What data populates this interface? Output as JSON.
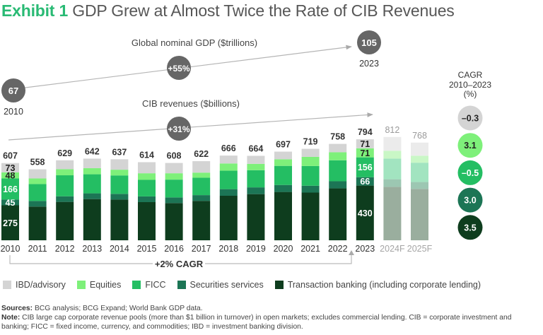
{
  "title": {
    "exhibit": "Exhibit 1",
    "text": "GDP Grew at Almost Twice the Rate of CIB Revenues"
  },
  "gdp": {
    "label": "Global nominal GDP ($trillions)",
    "start_value": "67",
    "start_year": "2010",
    "end_value": "105",
    "end_year": "2023",
    "growth": "+55%"
  },
  "cib": {
    "label": "CIB revenues ($billions)",
    "growth": "+31%"
  },
  "cagr_bracket": {
    "label": "+2% CAGR"
  },
  "cagr_panel": {
    "title_line1": "CAGR",
    "title_line2": "2010–2023",
    "title_line3": "(%)",
    "values": [
      {
        "segment": "IBD/advisory",
        "value": "–0.3"
      },
      {
        "segment": "Equities",
        "value": "3.1"
      },
      {
        "segment": "FICC",
        "value": "–0.5"
      },
      {
        "segment": "Securities services",
        "value": "3.0"
      },
      {
        "segment": "Transaction banking (including corporate lending)",
        "value": "3.5"
      }
    ]
  },
  "colors": {
    "ibd": "#D4D4D4",
    "equities": "#7EF07A",
    "ficc": "#24BE63",
    "securities": "#1C7555",
    "transaction": "#0E3D1E",
    "accent": "#29BA74",
    "connector": "#6E6E6E"
  },
  "chart_data": {
    "type": "bar",
    "stacked": true,
    "title": "GDP Grew at Almost Twice the Rate of CIB Revenues",
    "xlabel": "",
    "ylabel": "CIB revenues ($billions)",
    "ylim": [
      0,
      850
    ],
    "grid": false,
    "legend_placement": "bottom",
    "categories": [
      "2010",
      "2011",
      "2012",
      "2013",
      "2014",
      "2015",
      "2016",
      "2017",
      "2018",
      "2019",
      "2020",
      "2021",
      "2022",
      "2023",
      "2024F",
      "2025F"
    ],
    "forecast": [
      false,
      false,
      false,
      false,
      false,
      false,
      false,
      false,
      false,
      false,
      false,
      false,
      false,
      false,
      true,
      true
    ],
    "totals": [
      607,
      558,
      629,
      642,
      637,
      614,
      608,
      622,
      666,
      664,
      697,
      719,
      758,
      794,
      812,
      768
    ],
    "series": [
      {
        "name": "Transaction banking (including corporate lending)",
        "key": "transaction",
        "values": [
          275,
          265,
          302,
          324,
          320,
          300,
          293,
          310,
          350,
          363,
          380,
          375,
          408,
          430,
          420,
          404
        ]
      },
      {
        "name": "Securities services",
        "key": "securities",
        "values": [
          45,
          44,
          44,
          45,
          45,
          45,
          44,
          45,
          52,
          53,
          55,
          54,
          56,
          66,
          60,
          54
        ]
      },
      {
        "name": "FICC",
        "key": "ficc",
        "values": [
          166,
          133,
          165,
          150,
          145,
          130,
          140,
          137,
          145,
          135,
          150,
          155,
          165,
          156,
          162,
          152
        ]
      },
      {
        "name": "Equities",
        "key": "equities",
        "values": [
          48,
          44,
          48,
          48,
          45,
          52,
          50,
          40,
          57,
          50,
          52,
          72,
          63,
          71,
          62,
          55
        ]
      },
      {
        "name": "IBD/advisory",
        "key": "ibd",
        "values": [
          73,
          72,
          70,
          75,
          82,
          87,
          81,
          90,
          62,
          63,
          60,
          63,
          66,
          71,
          108,
          103
        ]
      }
    ],
    "segment_labels_shown": {
      "2010": {
        "transaction": "275",
        "securities": "45",
        "ficc": "166",
        "equities": "48",
        "ibd": "73"
      },
      "2023": {
        "transaction": "430",
        "securities": "66",
        "ficc": "156",
        "equities": "71",
        "ibd": "71"
      }
    }
  },
  "legend": [
    {
      "key": "ibd",
      "label": "IBD/advisory"
    },
    {
      "key": "equities",
      "label": "Equities"
    },
    {
      "key": "ficc",
      "label": "FICC"
    },
    {
      "key": "securities",
      "label": "Securities services"
    },
    {
      "key": "transaction",
      "label": "Transaction banking (including corporate lending)"
    }
  ],
  "notes": {
    "sources_label": "Sources:",
    "sources_text": " BCG analysis; BCG Expand; World Bank GDP data.",
    "note_label": "Note:",
    "note_text": " CIB large cap corporate revenue pools (more than $1 billion in turnover) in open markets; excludes commercial lending. CIB = corporate investment and banking; FICC = fixed income, currency, and commodities; IBD = investment banking division."
  }
}
